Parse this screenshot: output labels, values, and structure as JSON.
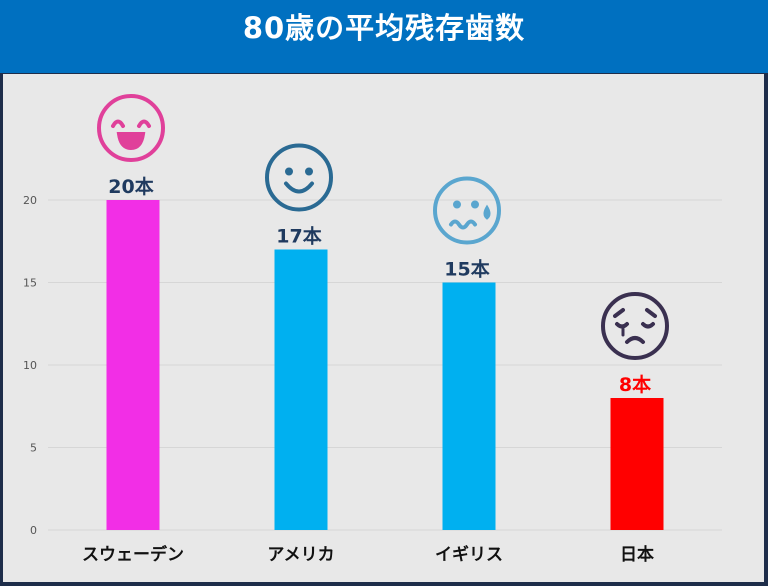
{
  "chart_data": {
    "type": "bar",
    "title": "80歳の平均残存歯数",
    "categories": [
      "スウェーデン",
      "アメリカ",
      "イギリス",
      "日本"
    ],
    "values": [
      20,
      17,
      15,
      8
    ],
    "data_labels": [
      "20本",
      "17本",
      "15本",
      "8本"
    ],
    "colors": [
      "#f22ee6",
      "#00b0f0",
      "#00b0f0",
      "#ff0000"
    ],
    "label_colors": [
      "#1f3a5f",
      "#1f3a5f",
      "#1f3a5f",
      "#ff0000"
    ],
    "faces": [
      {
        "icon": "big-smile-face-icon",
        "color": "#e0409a"
      },
      {
        "icon": "smile-face-icon",
        "color": "#2a6a93"
      },
      {
        "icon": "worried-sweat-face-icon",
        "color": "#5aa6cf"
      },
      {
        "icon": "sad-tear-face-icon",
        "color": "#3a3050"
      }
    ],
    "yticks": [
      0,
      5,
      10,
      15,
      20
    ],
    "ylim": [
      0,
      22
    ],
    "grid": true,
    "xlabel": "",
    "ylabel": ""
  }
}
